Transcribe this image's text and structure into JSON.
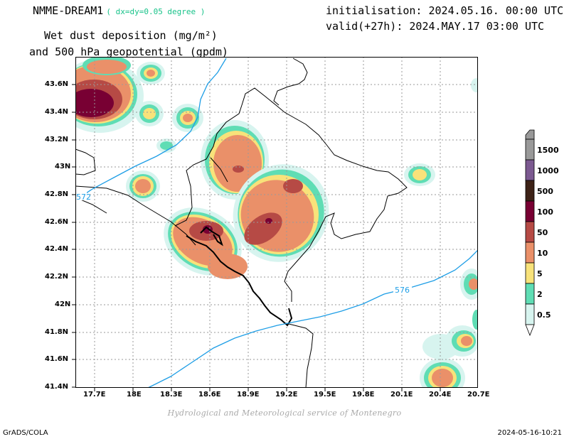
{
  "header": {
    "model": "NMME-DREAM1",
    "grid_res": "( dx=dy=0.05 degree )",
    "field_line1": "Wet dust deposition (mg/m²)",
    "field_line2": "and 500 hPa geopotential (gpdm)",
    "initialisation": "initialisation: 2024.05.16. 00:00 UTC",
    "valid": "valid(+27h): 2024.MAY.17 03:00 UTC"
  },
  "map": {
    "lat_labels": [
      "43.6N",
      "43.4N",
      "43.2N",
      "43N",
      "42.8N",
      "42.6N",
      "42.4N",
      "42.2N",
      "42N",
      "41.8N",
      "41.6N",
      "41.4N"
    ],
    "lon_labels": [
      "17.7E",
      "18E",
      "18.3E",
      "18.6E",
      "18.9E",
      "19.2E",
      "19.5E",
      "19.8E",
      "20.1E",
      "20.4E",
      "20.7E"
    ],
    "contour_labels": [
      "572",
      "576"
    ],
    "contour_color": "#1e9ee6"
  },
  "legend": {
    "levels": [
      "0.5",
      "2",
      "5",
      "10",
      "50",
      "100",
      "500",
      "1000",
      "1500"
    ],
    "colors": [
      "#d7f4ef",
      "#5fddb4",
      "#f8e27a",
      "#ea9069",
      "#b64a45",
      "#780033",
      "#3d2217",
      "#7c5a91",
      "#999999"
    ]
  },
  "footer": {
    "credit": "Hydrological and Meteorological service of Montenegro",
    "left": "GrADS/COLA",
    "right": "2024-05-16-10:21"
  }
}
